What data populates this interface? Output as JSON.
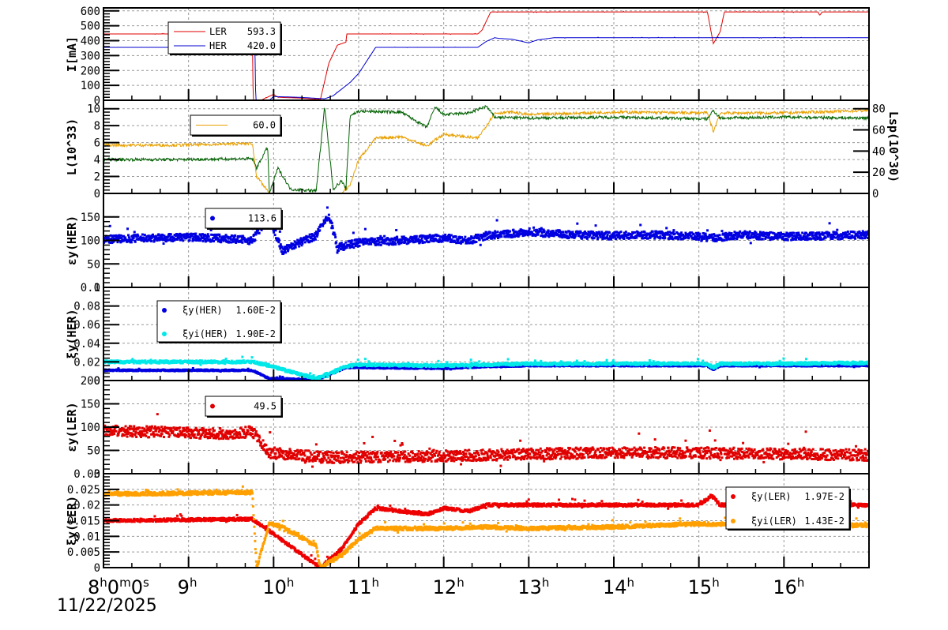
{
  "date_label": "11/22/2025",
  "x_axis": {
    "start_label": {
      "h": "8",
      "m": "0",
      "s": "0"
    },
    "tick_labels": [
      "9",
      "10",
      "11",
      "12",
      "13",
      "14",
      "15",
      "16"
    ],
    "hour_start": 8.0,
    "hour_end": 17.0
  },
  "chart_data": [
    {
      "type": "line",
      "id": "current",
      "ylabel": "I[mA]",
      "ylim": [
        0,
        620
      ],
      "yticks": [
        0,
        100,
        200,
        300,
        400,
        500,
        600
      ],
      "grid": true,
      "legend": [
        {
          "name": "LER",
          "value": "593.3",
          "color": "#e00000",
          "marker": "line"
        },
        {
          "name": "HER",
          "value": "420.0",
          "color": "#0000d0",
          "marker": "line"
        }
      ],
      "series": [
        {
          "name": "LER",
          "color": "#e00000",
          "x": [
            8.0,
            8.9,
            8.9,
            9.75,
            9.76,
            9.85,
            10.0,
            10.05,
            10.3,
            10.55,
            10.65,
            10.75,
            10.85,
            10.86,
            12.0,
            12.4,
            12.45,
            12.55,
            12.56,
            15.1,
            15.17,
            15.25,
            15.3,
            16.4,
            16.42,
            16.45,
            17.0
          ],
          "y": [
            445,
            445,
            440,
            445,
            0,
            0,
            40,
            20,
            15,
            5,
            250,
            370,
            390,
            445,
            445,
            445,
            470,
            590,
            593,
            593,
            380,
            460,
            593,
            593,
            570,
            593,
            593
          ]
        },
        {
          "name": "HER",
          "color": "#0000d0",
          "x": [
            8.0,
            9.78,
            9.79,
            9.95,
            10.0,
            10.3,
            10.6,
            10.7,
            10.9,
            11.0,
            11.2,
            12.4,
            12.5,
            12.6,
            12.65,
            12.8,
            13.0,
            13.1,
            13.3,
            17.0
          ],
          "y": [
            355,
            355,
            0,
            0,
            25,
            20,
            10,
            30,
            120,
            180,
            355,
            355,
            395,
            420,
            415,
            410,
            385,
            405,
            420,
            420
          ]
        }
      ]
    },
    {
      "type": "line",
      "id": "luminosity",
      "ylabel": "L(10^33)",
      "ylim": [
        0,
        11
      ],
      "yticks": [
        0,
        2,
        4,
        6,
        8,
        10
      ],
      "y2label": "Lsp(10^30)",
      "y2lim": [
        0,
        88
      ],
      "y2ticks": [
        0,
        20,
        40,
        60,
        80
      ],
      "grid": true,
      "legend": [
        {
          "name": "",
          "value": "60.0",
          "color": "#e8a000",
          "marker": "line"
        }
      ],
      "series": [
        {
          "name": "L",
          "color": "#e8a000",
          "x": [
            8.0,
            8.9,
            9.75,
            9.8,
            9.95,
            10.5,
            10.8,
            10.9,
            11.0,
            11.2,
            11.5,
            11.8,
            12.0,
            12.4,
            12.6,
            12.8,
            13.0,
            14.0,
            15.1,
            15.17,
            15.25,
            16.0,
            17.0
          ],
          "y": [
            5.7,
            5.7,
            5.9,
            2.0,
            0,
            0,
            0,
            1.0,
            4.0,
            6.5,
            6.7,
            5.6,
            7.0,
            6.5,
            9.5,
            9.6,
            9.3,
            9.6,
            9.5,
            7.3,
            9.5,
            9.5,
            9.8
          ]
        },
        {
          "name": "Lsp",
          "color": "#006000",
          "x": [
            8.0,
            8.9,
            9.75,
            9.8,
            9.93,
            9.95,
            10.05,
            10.2,
            10.5,
            10.6,
            10.7,
            10.8,
            10.85,
            10.9,
            11.0,
            11.5,
            11.8,
            11.9,
            12.0,
            12.3,
            12.5,
            12.6,
            13.0,
            14.0,
            15.1,
            15.17,
            15.25,
            16.0,
            17.0
          ],
          "y": [
            4.0,
            4.0,
            4.1,
            3.0,
            5.5,
            0,
            3.0,
            0.5,
            0.3,
            10.2,
            0.5,
            1.5,
            0.5,
            9.2,
            9.7,
            9.6,
            7.8,
            10.2,
            9.3,
            9.5,
            10.3,
            9.0,
            8.9,
            9.0,
            8.8,
            9.8,
            8.9,
            9.0,
            8.9
          ]
        }
      ]
    },
    {
      "type": "scatter",
      "id": "emittance_her",
      "ylabel": "εy(HER)",
      "ylim": [
        0,
        200
      ],
      "yticks": [
        0,
        50,
        100,
        150
      ],
      "grid": true,
      "legend": [
        {
          "name": "",
          "value": "113.6",
          "color": "#0000e0",
          "marker": "dot"
        }
      ],
      "series": [
        {
          "name": "εy(HER)",
          "color": "#0000e0",
          "x": [
            8.0,
            8.5,
            9.0,
            9.5,
            9.75,
            9.95,
            10.1,
            10.3,
            10.5,
            10.65,
            10.75,
            11.0,
            11.5,
            12.0,
            12.3,
            12.5,
            13.0,
            13.5,
            14.0,
            14.5,
            15.0,
            15.2,
            15.5,
            16.0,
            16.5,
            17.0
          ],
          "y": [
            102,
            105,
            107,
            103,
            100,
            150,
            78,
            95,
            110,
            155,
            85,
            95,
            100,
            105,
            100,
            110,
            118,
            112,
            110,
            112,
            108,
            105,
            112,
            108,
            110,
            112
          ],
          "spread": 8
        }
      ]
    },
    {
      "type": "scatter",
      "id": "tuneshift_her",
      "ylabel": "ξy(HER)",
      "ylim": [
        0,
        0.1
      ],
      "yticks": [
        0,
        0.02,
        0.04,
        0.06,
        0.08,
        0.1
      ],
      "grid": true,
      "legend": [
        {
          "name": "ξy(HER)",
          "value": "1.60E-2",
          "color": "#0000e0",
          "marker": "dot"
        },
        {
          "name": "ξyi(HER)",
          "value": "1.90E-2",
          "color": "#00e8e8",
          "marker": "dot"
        }
      ],
      "series": [
        {
          "name": "ξy(HER)",
          "color": "#0000e0",
          "x": [
            8.0,
            9.75,
            9.95,
            10.5,
            10.85,
            11.0,
            12.0,
            12.5,
            13.0,
            14.0,
            15.1,
            15.17,
            15.25,
            16.0,
            17.0
          ],
          "y": [
            0.011,
            0.011,
            0.002,
            0.001,
            0.014,
            0.014,
            0.013,
            0.015,
            0.016,
            0.016,
            0.016,
            0.012,
            0.016,
            0.016,
            0.016
          ],
          "spread": 0.0008
        },
        {
          "name": "ξyi(HER)",
          "color": "#00e8e8",
          "x": [
            8.0,
            9.75,
            9.95,
            10.5,
            10.85,
            11.0,
            12.0,
            12.5,
            13.0,
            14.0,
            15.1,
            15.17,
            15.25,
            16.0,
            17.0
          ],
          "y": [
            0.02,
            0.02,
            0.016,
            0.002,
            0.015,
            0.017,
            0.016,
            0.017,
            0.018,
            0.018,
            0.018,
            0.014,
            0.018,
            0.018,
            0.019
          ],
          "spread": 0.0015
        }
      ]
    },
    {
      "type": "scatter",
      "id": "emittance_ler",
      "ylabel": "εy(LER)",
      "ylim": [
        0,
        200
      ],
      "yticks": [
        0,
        50,
        100,
        150,
        200
      ],
      "grid": true,
      "legend": [
        {
          "name": "",
          "value": "49.5",
          "color": "#e00000",
          "marker": "dot"
        }
      ],
      "series": [
        {
          "name": "εy(LER)",
          "color": "#e00000",
          "x": [
            8.0,
            8.5,
            9.0,
            9.5,
            9.75,
            9.95,
            10.3,
            10.6,
            11.0,
            12.0,
            12.5,
            13.0,
            14.0,
            15.0,
            16.0,
            17.0
          ],
          "y": [
            92,
            90,
            88,
            85,
            90,
            45,
            40,
            35,
            35,
            38,
            40,
            42,
            45,
            45,
            42,
            40
          ],
          "spread": 12
        }
      ]
    },
    {
      "type": "scatter",
      "id": "tuneshift_ler",
      "ylabel": "ξy(LER)",
      "ylim": [
        0,
        0.03
      ],
      "yticks": [
        0,
        0.005,
        0.01,
        0.015,
        0.02,
        0.025,
        0.03
      ],
      "grid": true,
      "legend": [
        {
          "name": "ξy(LER)",
          "value": "1.97E-2",
          "color": "#ee0000",
          "marker": "dot"
        },
        {
          "name": "ξyi(LER)",
          "value": "1.43E-2",
          "color": "#ffa000",
          "marker": "dot"
        }
      ],
      "series": [
        {
          "name": "ξy(LER)",
          "color": "#ee0000",
          "x": [
            8.0,
            9.75,
            10.55,
            10.8,
            11.0,
            11.2,
            11.5,
            11.8,
            12.0,
            12.3,
            12.5,
            13.0,
            14.0,
            15.0,
            15.15,
            15.25,
            16.0,
            17.0
          ],
          "y": [
            0.015,
            0.0155,
            0.0,
            0.006,
            0.014,
            0.019,
            0.018,
            0.017,
            0.019,
            0.018,
            0.02,
            0.02,
            0.02,
            0.02,
            0.023,
            0.02,
            0.02,
            0.02
          ],
          "spread": 0.0005
        },
        {
          "name": "ξyi(LER)",
          "color": "#ffa000",
          "x": [
            7.99,
            8.0,
            9.75,
            9.8,
            9.95,
            10.1,
            10.5,
            10.55,
            10.8,
            11.0,
            11.2,
            12.0,
            12.5,
            13.0,
            14.0,
            15.0,
            16.0,
            17.0
          ],
          "y": [
            0.024,
            0.0235,
            0.024,
            0.0,
            0.014,
            0.013,
            0.007,
            0.0,
            0.004,
            0.009,
            0.0125,
            0.0125,
            0.013,
            0.0125,
            0.013,
            0.014,
            0.0135,
            0.0135
          ],
          "spread": 0.0006
        }
      ]
    }
  ]
}
